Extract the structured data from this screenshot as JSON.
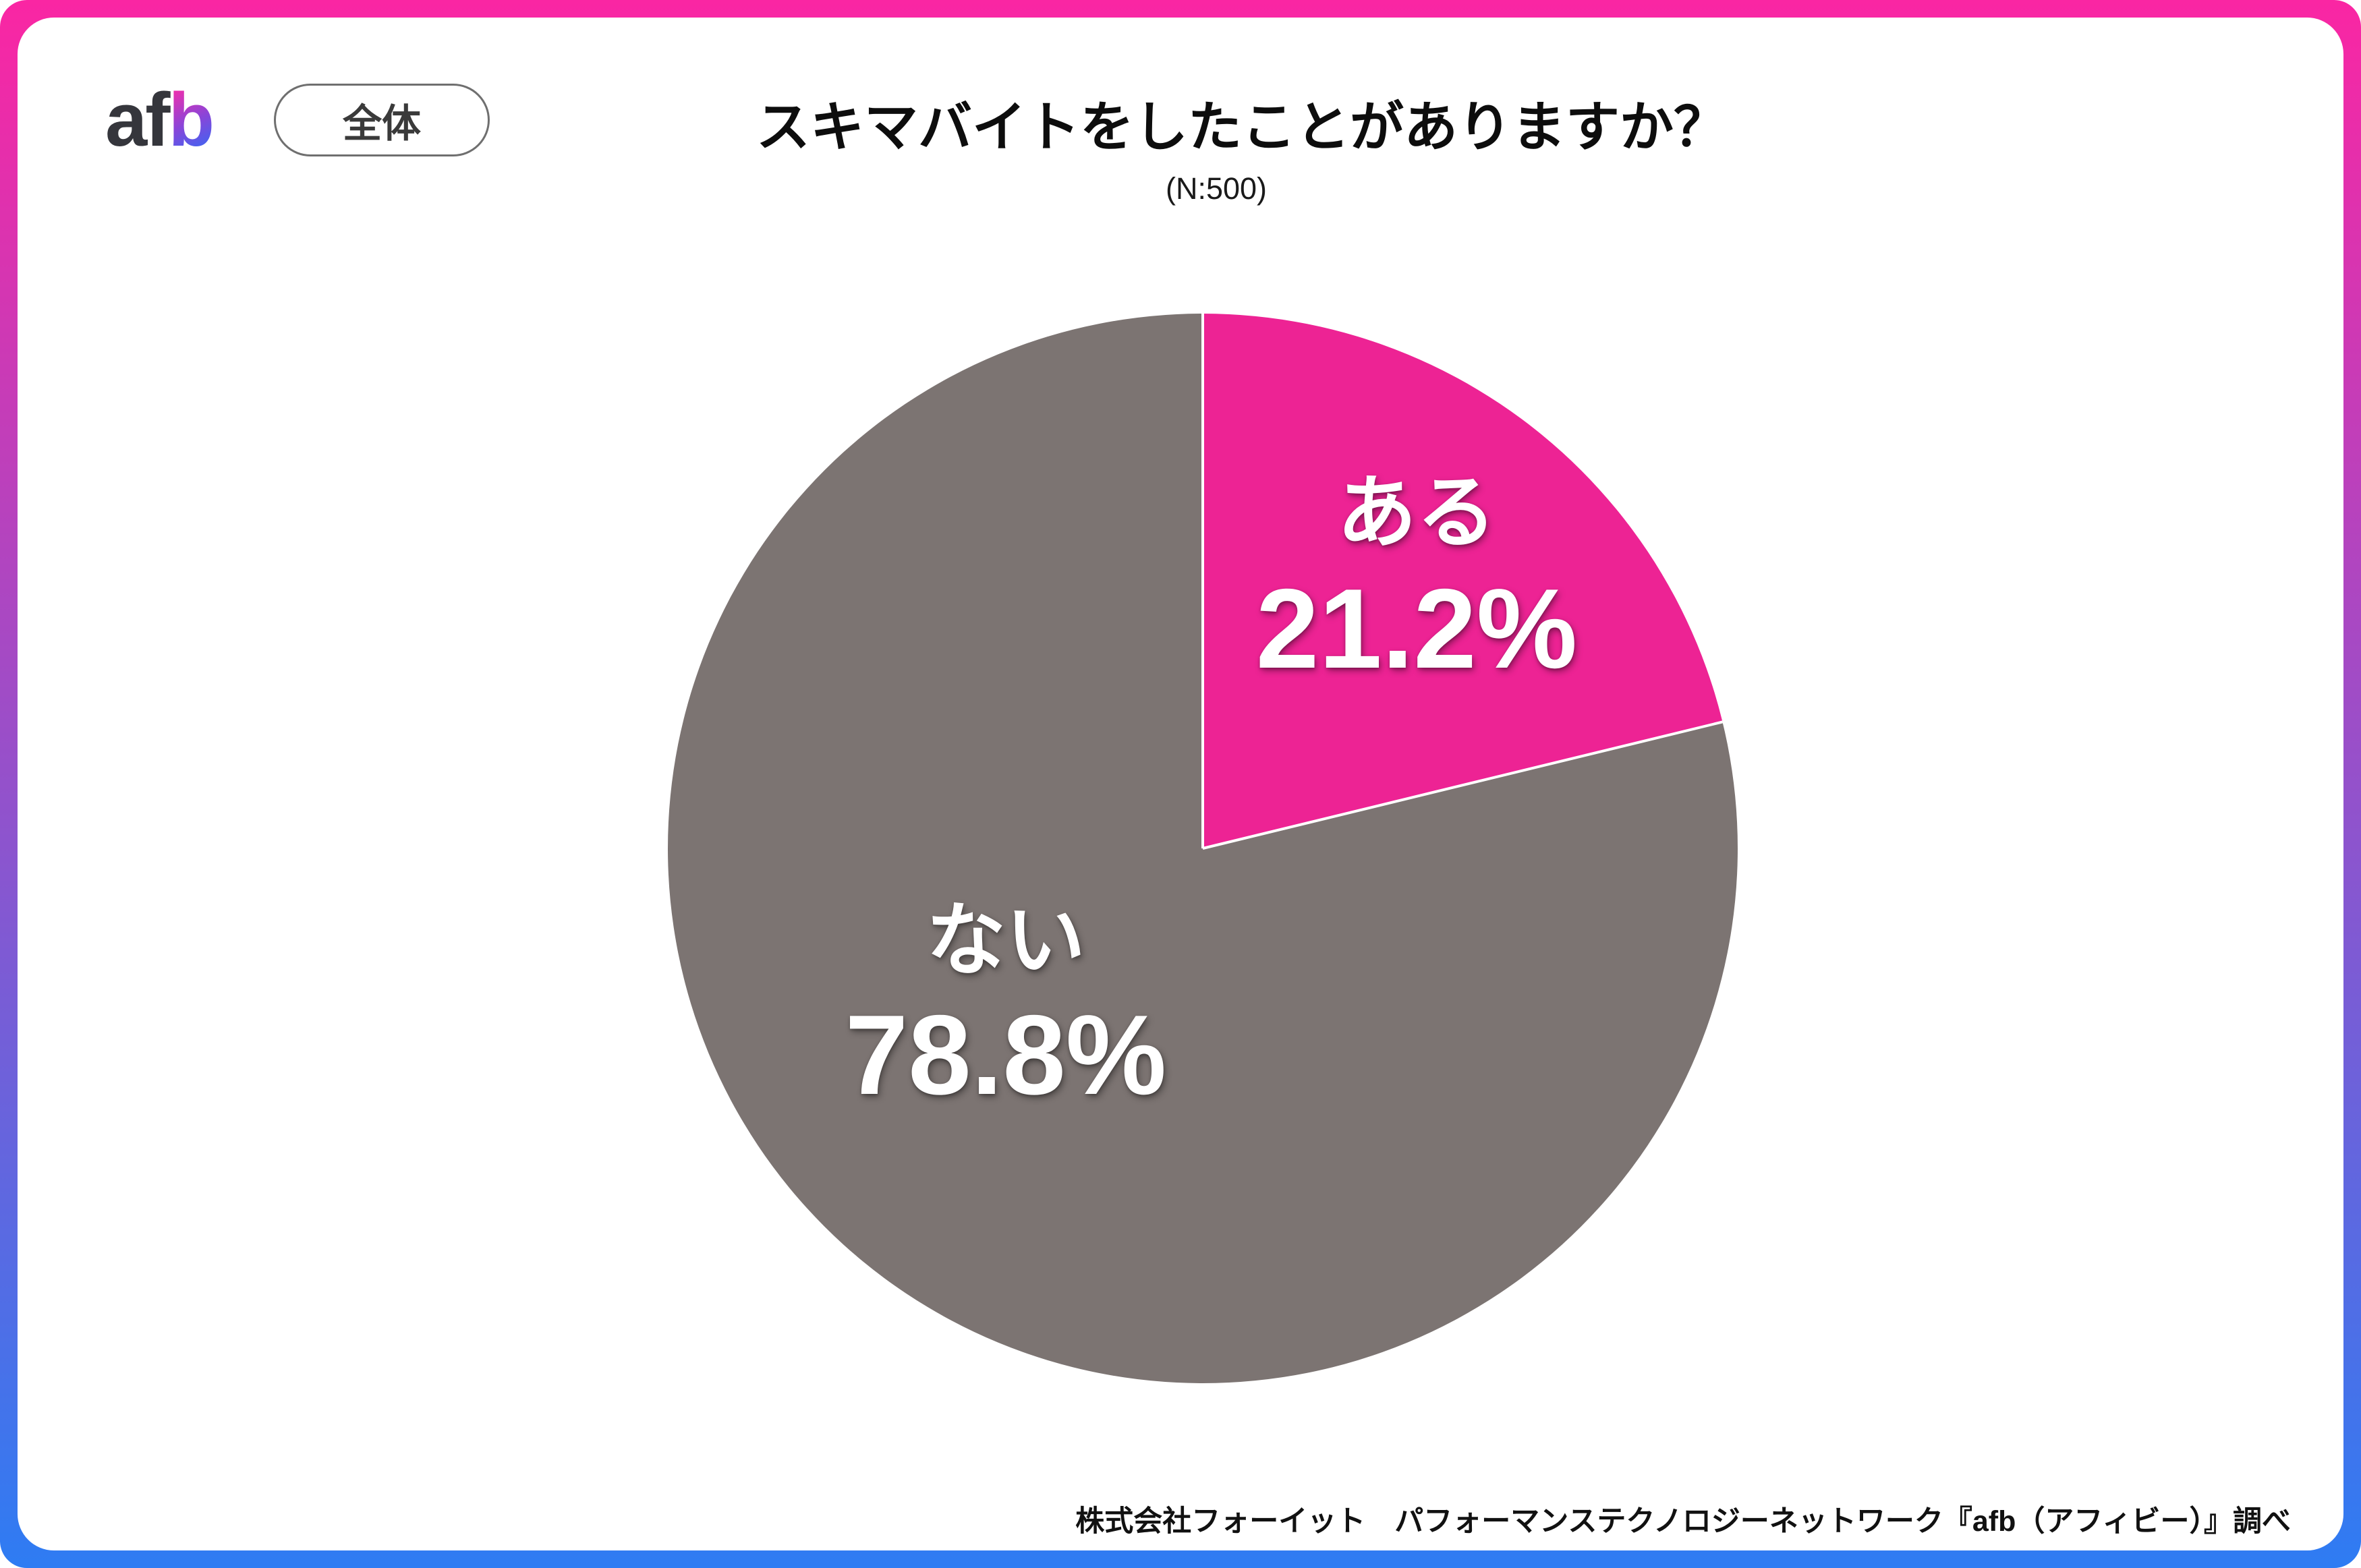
{
  "brand": {
    "logo_af": "af",
    "logo_b": "b",
    "scope_badge": "全体"
  },
  "header": {
    "title": "スキマバイトをしたことがありますか？",
    "sample_size": "(N:500)"
  },
  "chart_data": {
    "type": "pie",
    "title": "スキマバイトをしたことがありますか？",
    "n": 500,
    "sample_size_label": "(N:500)",
    "start_angle_deg": 0,
    "direction": "clockwise",
    "separator_color": "#FFFFFF",
    "slices": [
      {
        "label": "ある",
        "value": 21.2,
        "display": "21.2%",
        "color": "#ED2394"
      },
      {
        "label": "ない",
        "value": 78.8,
        "display": "78.8%",
        "color": "#7C7472"
      }
    ]
  },
  "footer": {
    "attribution": "株式会社フォーイット　パフォーマンステクノロジーネットワーク『afb（アフィビー）』調べ"
  },
  "theme": {
    "frame_gradient_top": "#FA26A3",
    "frame_gradient_bottom": "#2E7CF3",
    "card_bg": "#FFFFFF",
    "accent_pink": "#ED2394",
    "neutral_gray": "#7C7472"
  }
}
